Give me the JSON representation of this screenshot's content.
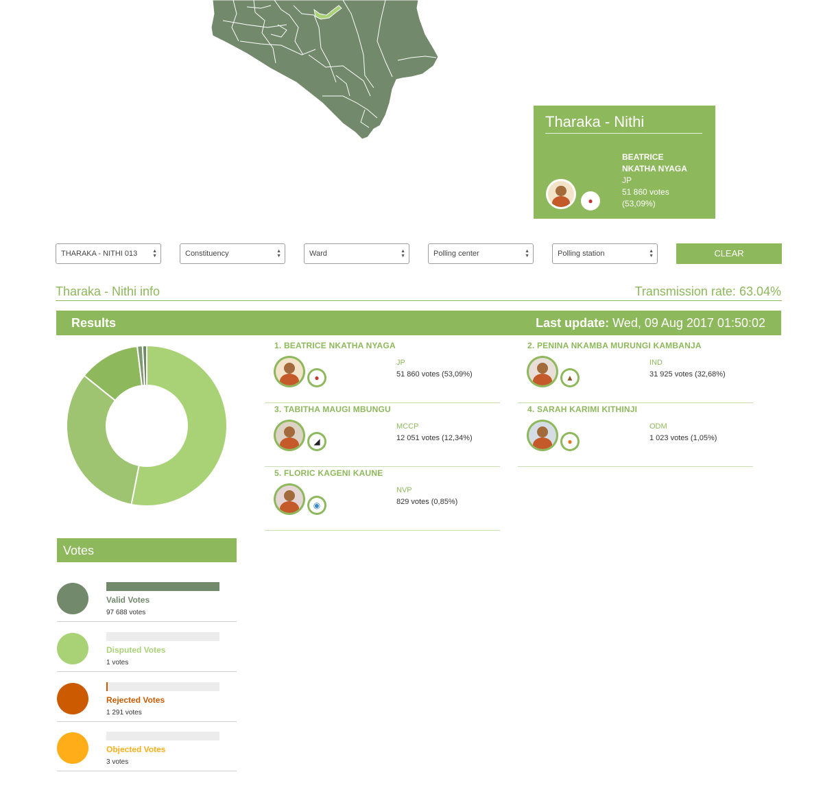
{
  "popup": {
    "title": "Tharaka - Nithi",
    "candidate_name_line1": "BEATRICE",
    "candidate_name_line2": "NKATHA NYAGA",
    "party": "JP",
    "votes": "51 860 votes",
    "percent": "(53,09%)"
  },
  "filters": {
    "county": "THARAKA - NITHI 013",
    "constituency": "Constituency",
    "ward": "Ward",
    "polling_center": "Polling center",
    "polling_station": "Polling station",
    "clear_label": "CLEAR"
  },
  "info": {
    "title": "Tharaka - Nithi info",
    "transmission_rate": "Transmission rate: 63.04%"
  },
  "results": {
    "title": "Results",
    "last_update_label": "Last update:",
    "last_update_value": " Wed, 09 Aug 2017 01:50:02"
  },
  "candidates": [
    {
      "name": "1. BEATRICE NKATHA NYAGA",
      "party": "JP",
      "votes": "51 860 votes (53,09%)",
      "share": 53.09,
      "color": "#a9d276",
      "logo_icon": "jp-party-logo-icon"
    },
    {
      "name": "2. PENINA NKAMBA MURUNGI KAMBANJA",
      "party": "IND",
      "votes": "31 925 votes (32,68%)",
      "share": 32.68,
      "color": "#9ec472",
      "logo_icon": "independent-logo-icon"
    },
    {
      "name": "3. TABITHA MAUGI MBUNGU",
      "party": "MCCP",
      "votes": "12 051 votes (12,34%)",
      "share": 12.34,
      "color": "#8db85b",
      "logo_icon": "mccp-party-logo-icon"
    },
    {
      "name": "4. SARAH KARIMI KITHINJI",
      "party": "ODM",
      "votes": "1 023 votes (1,05%)",
      "share": 1.05,
      "color": "#7e9a70",
      "logo_icon": "odm-party-logo-icon"
    },
    {
      "name": "5. FLORIC KAGENI KAUNE",
      "party": "NVP",
      "votes": "829 votes (0,85%)",
      "share": 0.85,
      "color": "#6f8a68",
      "logo_icon": "nvp-party-logo-icon"
    }
  ],
  "votes": {
    "title": "Votes",
    "rows": [
      {
        "label": "Valid Votes",
        "count": "97 688 votes",
        "color": "#72896c",
        "fill": 1.0
      },
      {
        "label": "Disputed Votes",
        "count": "1 votes",
        "color": "#a9d276",
        "fill": 0.0
      },
      {
        "label": "Rejected Votes",
        "count": "1 291 votes",
        "color": "#cc5a00",
        "fill": 0.013
      },
      {
        "label": "Objected Votes",
        "count": "3 votes",
        "color": "#ffae19",
        "fill": 0.0
      }
    ]
  },
  "colors": {
    "accent": "#8db85b",
    "map_fill": "#72896c",
    "map_highlight": "#a9d276"
  }
}
